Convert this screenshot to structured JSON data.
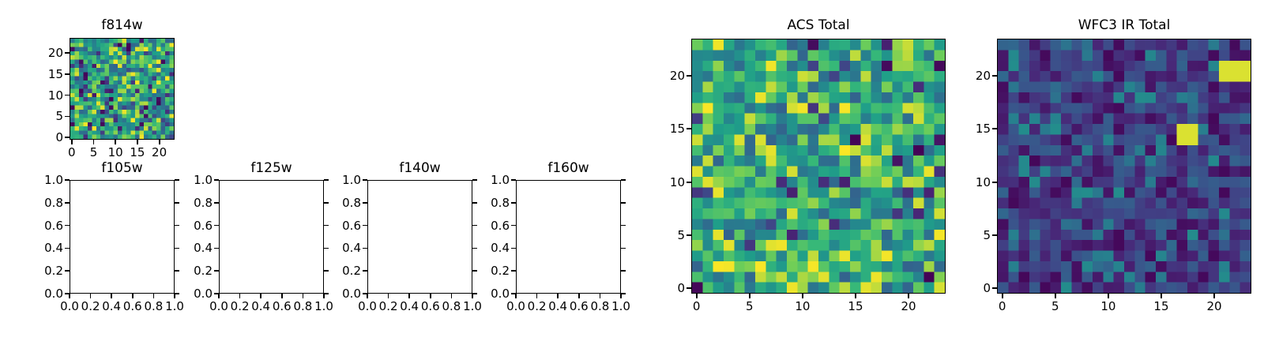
{
  "figure": {
    "background": "#ffffff",
    "text_color": "#000000",
    "colormap_name": "viridis"
  },
  "chart_data": [
    {
      "id": "f814w",
      "type": "heatmap",
      "title": "f814w",
      "grid": {
        "cols": 24,
        "rows": 24
      },
      "xlim": [
        -0.5,
        23.5
      ],
      "ylim": [
        -0.5,
        23.5
      ],
      "xticks": [
        0,
        5,
        10,
        15,
        20
      ],
      "yticks": [
        0,
        5,
        10,
        15,
        20
      ],
      "tick_format": "int",
      "colormap": "viridis",
      "pattern": "uniform random noise image, mostly mid-to-bright green and yellow cells with sparse dark purple cells",
      "noise": {
        "seed": 11,
        "base_range": [
          0.35,
          1.0
        ],
        "alt_fraction": 0.12,
        "alt_range": [
          0.0,
          0.28
        ]
      }
    },
    {
      "id": "f105w",
      "type": "empty",
      "title": "f105w",
      "xlim": [
        0,
        1
      ],
      "ylim": [
        0,
        1
      ],
      "xticks": [
        0,
        0.2,
        0.4,
        0.6,
        0.8,
        1
      ],
      "yticks": [
        0,
        0.2,
        0.4,
        0.6,
        0.8,
        1
      ],
      "tick_format": "1dp",
      "pattern": "empty axes, no data plotted"
    },
    {
      "id": "f125w",
      "type": "empty",
      "title": "f125w",
      "xlim": [
        0,
        1
      ],
      "ylim": [
        0,
        1
      ],
      "xticks": [
        0,
        0.2,
        0.4,
        0.6,
        0.8,
        1
      ],
      "yticks": [
        0,
        0.2,
        0.4,
        0.6,
        0.8,
        1
      ],
      "tick_format": "1dp",
      "pattern": "empty axes, no data plotted"
    },
    {
      "id": "f140w",
      "type": "empty",
      "title": "f140w",
      "xlim": [
        0,
        1
      ],
      "ylim": [
        0,
        1
      ],
      "xticks": [
        0,
        0.2,
        0.4,
        0.6,
        0.8,
        1
      ],
      "yticks": [
        0,
        0.2,
        0.4,
        0.6,
        0.8,
        1
      ],
      "tick_format": "1dp",
      "pattern": "empty axes, no data plotted"
    },
    {
      "id": "f160w",
      "type": "empty",
      "title": "f160w",
      "xlim": [
        0,
        1
      ],
      "ylim": [
        0,
        1
      ],
      "xticks": [
        0,
        0.2,
        0.4,
        0.6,
        0.8,
        1
      ],
      "yticks": [
        0,
        0.2,
        0.4,
        0.6,
        0.8,
        1
      ],
      "tick_format": "1dp",
      "pattern": "empty axes, no data plotted"
    },
    {
      "id": "acs-total",
      "type": "heatmap",
      "title": "ACS Total",
      "grid": {
        "cols": 24,
        "rows": 24
      },
      "xlim": [
        -0.5,
        23.5
      ],
      "ylim": [
        -0.5,
        23.5
      ],
      "xticks": [
        0,
        5,
        10,
        15,
        20
      ],
      "yticks": [
        0,
        5,
        10,
        15,
        20
      ],
      "tick_format": "int",
      "colormap": "viridis",
      "pattern": "uniform random noise image, mostly green with scattered yellow and sparse dark purple cells",
      "noise": {
        "seed": 7,
        "base_range": [
          0.35,
          1.0
        ],
        "alt_fraction": 0.07,
        "alt_range": [
          0.0,
          0.25
        ]
      }
    },
    {
      "id": "wfc3-ir-total",
      "type": "heatmap",
      "title": "WFC3 IR Total",
      "grid": {
        "cols": 24,
        "rows": 24
      },
      "xlim": [
        -0.5,
        23.5
      ],
      "ylim": [
        -0.5,
        23.5
      ],
      "xticks": [
        0,
        5,
        10,
        15,
        20
      ],
      "yticks": [
        0,
        5,
        10,
        15,
        20
      ],
      "tick_format": "int",
      "colormap": "viridis",
      "pattern": "dark purple/blue random noise image with teal speckles and two saturated yellow blobs",
      "noise": {
        "seed": 23,
        "base_range": [
          0.02,
          0.33
        ],
        "alt_fraction": 0.18,
        "alt_range": [
          0.28,
          0.55
        ]
      },
      "bright_rects": [
        {
          "x": 17,
          "y": 14,
          "w": 2,
          "h": 2
        },
        {
          "x": 21,
          "y": 20,
          "w": 3,
          "h": 2
        }
      ]
    }
  ]
}
